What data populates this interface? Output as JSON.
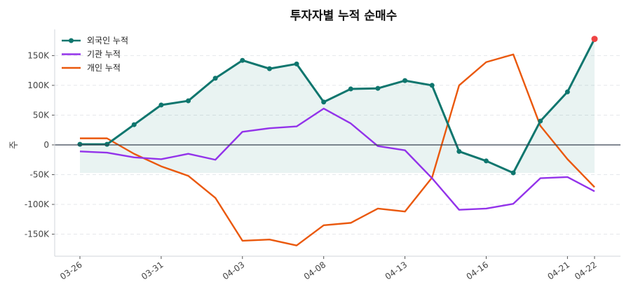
{
  "chart_data": {
    "type": "line",
    "title": "투자자별 누적 순매수",
    "ylabel": "주",
    "xlabel": "",
    "x_tick_labels": [
      {
        "index": 0,
        "label": "03-26"
      },
      {
        "index": 3,
        "label": "03-31"
      },
      {
        "index": 6,
        "label": "04-03"
      },
      {
        "index": 9,
        "label": "04-08"
      },
      {
        "index": 12,
        "label": "04-13"
      },
      {
        "index": 15,
        "label": "04-16"
      },
      {
        "index": 18,
        "label": "04-21"
      },
      {
        "index": 19,
        "label": "04-22"
      }
    ],
    "y_ticks": [
      {
        "value": 150000,
        "label": "150K"
      },
      {
        "value": 100000,
        "label": "100K"
      },
      {
        "value": 50000,
        "label": "50K"
      },
      {
        "value": 0,
        "label": "0"
      },
      {
        "value": -50000,
        "label": "-50K"
      },
      {
        "value": -100000,
        "label": "-100K"
      },
      {
        "value": -150000,
        "label": "-150K"
      }
    ],
    "ylim": [
      -187000,
      194000
    ],
    "grid": "horizontal dashed",
    "legend_position": "top-left",
    "series": [
      {
        "name": "외국인 누적",
        "color": "#0f766e",
        "markers": true,
        "fill": true,
        "values": [
          1000,
          1000,
          34000,
          67000,
          74000,
          112000,
          142000,
          128000,
          136000,
          72000,
          94000,
          95000,
          108000,
          100000,
          -11000,
          -27000,
          -47000,
          40000,
          89000,
          178000
        ]
      },
      {
        "name": "기관 누적",
        "color": "#9333ea",
        "markers": false,
        "values": [
          -11000,
          -13000,
          -21000,
          -24000,
          -15000,
          -25000,
          22000,
          28000,
          31000,
          61000,
          36000,
          -2000,
          -9000,
          -56000,
          -109000,
          -107000,
          -99000,
          -56000,
          -54000,
          -78000
        ]
      },
      {
        "name": "개인 누적",
        "color": "#ea580c",
        "markers": false,
        "values": [
          11000,
          11000,
          -15000,
          -36000,
          -52000,
          -89000,
          -161000,
          -159000,
          -169000,
          -135000,
          -131000,
          -107000,
          -112000,
          -55000,
          100000,
          139000,
          152000,
          32000,
          -24000,
          -71000
        ]
      }
    ],
    "highlight_last_point_color": "#ef4444"
  }
}
